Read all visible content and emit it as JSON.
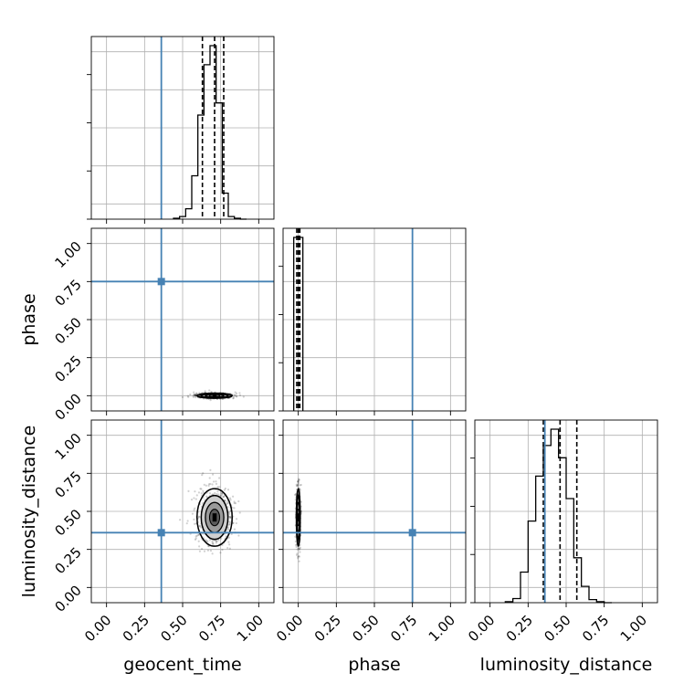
{
  "chart_data": {
    "type": "corner",
    "parameters": [
      "geocent_time",
      "phase",
      "luminosity_distance"
    ],
    "axis_labels": {
      "x": [
        "geocent_time",
        "phase",
        "luminosity_distance"
      ],
      "y": [
        "",
        "phase",
        "luminosity_distance"
      ]
    },
    "range": [
      -0.1,
      1.1
    ],
    "ticks": [
      0.0,
      0.25,
      0.5,
      0.75,
      1.0
    ],
    "tick_labels": [
      "0.00",
      "0.25",
      "0.50",
      "0.75",
      "1.00"
    ],
    "grid": true,
    "colors": {
      "truth": "#4682b4",
      "hist": "#000000"
    },
    "truths": {
      "geocent_time": 0.36,
      "phase": 0.75,
      "luminosity_distance": 0.36
    },
    "quantiles": {
      "geocent_time": [
        0.63,
        0.71,
        0.77
      ],
      "phase": [
        -0.01,
        0.0,
        0.01
      ],
      "luminosity_distance": [
        0.35,
        0.46,
        0.57
      ]
    },
    "histograms": {
      "geocent_time": {
        "edges": [
          0.44,
          0.48,
          0.52,
          0.56,
          0.6,
          0.64,
          0.68,
          0.72,
          0.76,
          0.8,
          0.84,
          0.88,
          0.92
        ],
        "counts": [
          0.005,
          0.015,
          0.06,
          0.25,
          0.6,
          0.89,
          1.0,
          0.67,
          0.15,
          0.015,
          0.005,
          0.0
        ]
      },
      "phase": {
        "edges": [
          -0.03,
          0.03
        ],
        "counts": [
          1.0
        ]
      },
      "luminosity_distance": {
        "edges": [
          0.1,
          0.15,
          0.2,
          0.25,
          0.3,
          0.35,
          0.4,
          0.45,
          0.5,
          0.55,
          0.6,
          0.65,
          0.7,
          0.75,
          0.8
        ],
        "counts": [
          0.005,
          0.02,
          0.15,
          0.4,
          0.62,
          0.77,
          0.85,
          0.71,
          0.51,
          0.22,
          0.08,
          0.015,
          0.005,
          0.0
        ]
      }
    },
    "two_d": [
      {
        "x": "geocent_time",
        "y": "phase",
        "center": [
          0.71,
          0.0
        ],
        "sigma": [
          0.055,
          0.008
        ]
      },
      {
        "x": "geocent_time",
        "y": "luminosity_distance",
        "center": [
          0.71,
          0.46
        ],
        "sigma": [
          0.055,
          0.09
        ]
      },
      {
        "x": "phase",
        "y": "luminosity_distance",
        "center": [
          0.0,
          0.46
        ],
        "sigma": [
          0.006,
          0.09
        ]
      }
    ]
  }
}
